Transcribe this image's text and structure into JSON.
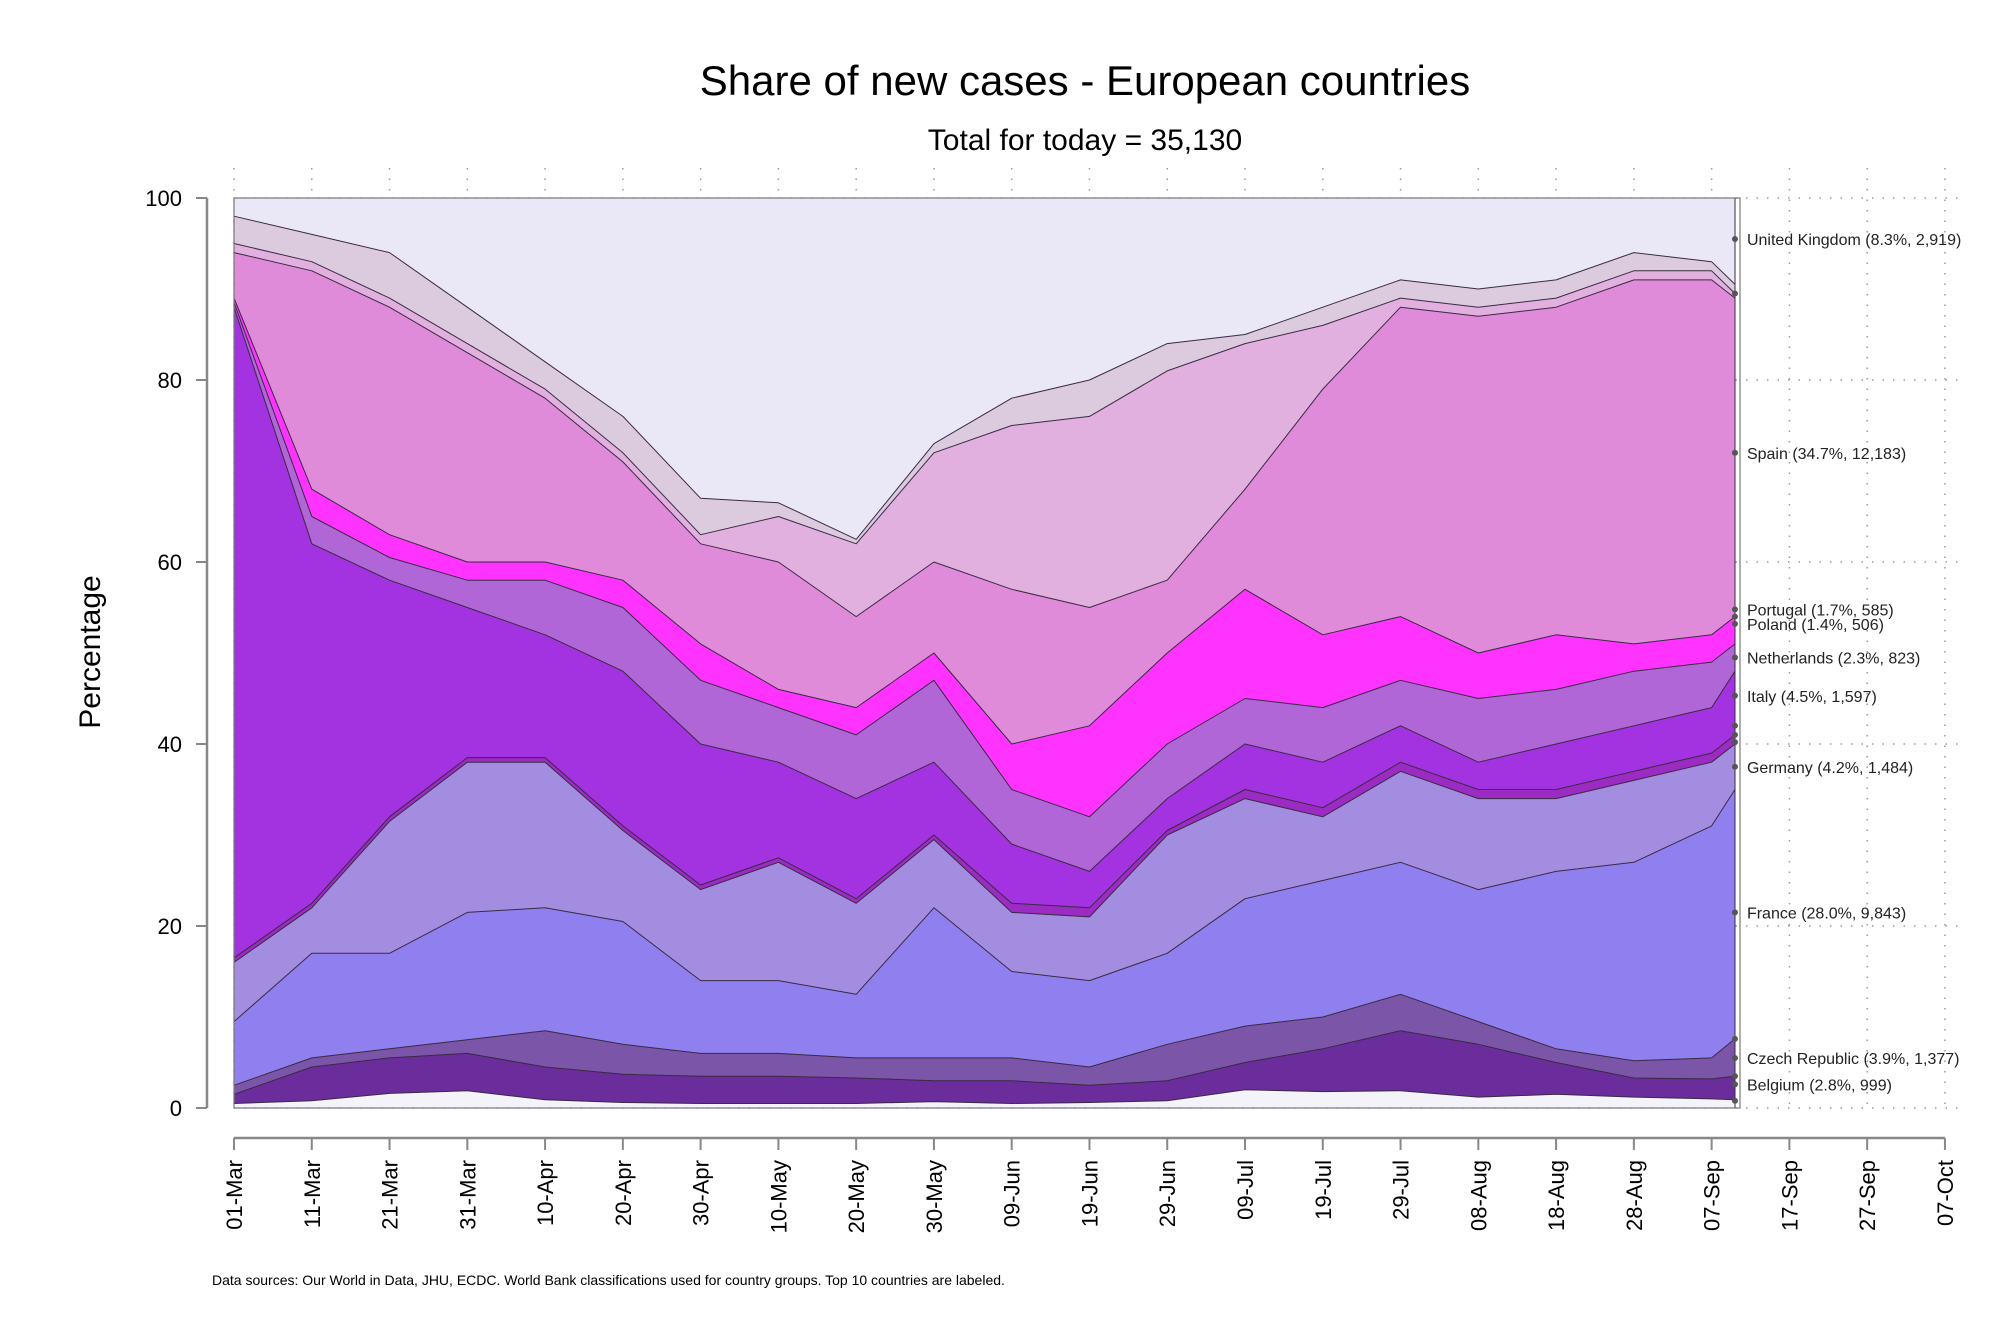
{
  "chart_data": {
    "type": "area",
    "title": "Share of new cases - European countries",
    "subtitle": "Total for today =  35,130",
    "ylabel": "Percentage",
    "xlabel": "",
    "ylim": [
      0,
      100
    ],
    "y_ticks": [
      "0",
      "20",
      "40",
      "60",
      "80",
      "100"
    ],
    "x_ticks": [
      "01-Mar",
      "11-Mar",
      "21-Mar",
      "31-Mar",
      "10-Apr",
      "20-Apr",
      "30-Apr",
      "10-May",
      "20-May",
      "30-May",
      "09-Jun",
      "19-Jun",
      "29-Jun",
      "09-Jul",
      "19-Jul",
      "29-Jul",
      "08-Aug",
      "18-Aug",
      "28-Aug",
      "07-Sep",
      "17-Sep",
      "27-Sep",
      "07-Oct"
    ],
    "x": [
      "01-Mar",
      "11-Mar",
      "21-Mar",
      "31-Mar",
      "10-Apr",
      "20-Apr",
      "30-Apr",
      "10-May",
      "20-May",
      "30-May",
      "09-Jun",
      "19-Jun",
      "29-Jun",
      "09-Jul",
      "19-Jul",
      "29-Jul",
      "08-Aug",
      "18-Aug",
      "28-Aug",
      "07-Sep",
      "10-Sep"
    ],
    "x_range": [
      "01-Mar",
      "07-Oct"
    ],
    "grid": true,
    "cumulative_boundaries": [
      {
        "values": [
          0.5,
          0.8,
          1.6,
          1.9,
          0.9,
          0.6,
          0.5,
          0.5,
          0.5,
          0.7,
          0.5,
          0.6,
          0.8,
          2.0,
          1.8,
          1.9,
          1.2,
          1.5,
          1.2,
          1.0,
          0.9
        ],
        "color": "#f3f3f9"
      },
      {
        "values": [
          1.5,
          4.5,
          5.5,
          6.0,
          4.5,
          3.7,
          3.5,
          3.5,
          3.3,
          3.0,
          3.0,
          2.5,
          3.0,
          5.0,
          6.5,
          8.5,
          7.0,
          5.0,
          3.3,
          3.2,
          3.5
        ],
        "color": "#6a2d9b"
      },
      {
        "values": [
          2.5,
          5.5,
          6.5,
          7.5,
          8.5,
          7.0,
          6.0,
          6.0,
          5.5,
          5.5,
          5.5,
          4.5,
          7.0,
          9.0,
          10.0,
          12.5,
          9.5,
          6.5,
          5.2,
          5.5,
          7.6
        ],
        "color": "#7b55a8"
      },
      {
        "values": [
          9.5,
          17.0,
          17.0,
          21.5,
          22.0,
          20.5,
          14.0,
          14.0,
          12.5,
          22.0,
          15.0,
          14.0,
          17.0,
          23.0,
          25.0,
          27.0,
          24.0,
          26.0,
          27.0,
          31.0,
          35.0
        ],
        "color": "#9080ef"
      },
      {
        "values": [
          16.0,
          22.0,
          31.5,
          38.0,
          38.0,
          30.5,
          24.0,
          27.0,
          22.5,
          29.5,
          21.5,
          21.0,
          30.0,
          34.0,
          32.0,
          37.0,
          34.0,
          34.0,
          36.0,
          38.0,
          40.0
        ],
        "color": "#a38de0"
      },
      {
        "values": [
          16.5,
          22.5,
          32.0,
          38.5,
          38.5,
          31.0,
          24.5,
          27.5,
          23.0,
          30.0,
          22.5,
          22.0,
          30.5,
          35.0,
          33.0,
          38.0,
          35.0,
          35.0,
          37.0,
          39.0,
          41.0
        ],
        "color": "#9b2bc2"
      },
      {
        "values": [
          88.0,
          62.0,
          58.0,
          55.0,
          52.0,
          48.0,
          40.0,
          38.0,
          34.0,
          38.0,
          29.0,
          26.0,
          34.0,
          40.0,
          38.0,
          42.0,
          38.0,
          40.0,
          42.0,
          44.0,
          48.0
        ],
        "color": "#a332e0"
      },
      {
        "values": [
          88.5,
          65.0,
          60.5,
          58.0,
          58.0,
          55.0,
          47.0,
          44.0,
          41.0,
          47.0,
          35.0,
          32.0,
          40.0,
          45.0,
          44.0,
          47.0,
          45.0,
          46.0,
          48.0,
          49.0,
          51.0
        ],
        "color": "#b066d6"
      },
      {
        "values": [
          89.0,
          68.0,
          63.0,
          60.0,
          60.0,
          58.0,
          51.0,
          46.0,
          44.0,
          50.0,
          40.0,
          42.0,
          50.0,
          57.0,
          52.0,
          54.0,
          50.0,
          52.0,
          51.0,
          52.0,
          54.0
        ],
        "color": "#ff33ff"
      },
      {
        "values": [
          94.0,
          92.0,
          88.0,
          83.0,
          78.0,
          71.0,
          62.0,
          60.0,
          54.0,
          60.0,
          57.0,
          55.0,
          58.0,
          68.0,
          79.0,
          88.0,
          87.0,
          88.0,
          91.0,
          91.0,
          89.0
        ],
        "color": "#e08ada"
      },
      {
        "values": [
          95.0,
          93.0,
          89.0,
          84.0,
          79.0,
          72.0,
          63.0,
          65.0,
          62.0,
          72.0,
          75.0,
          76.0,
          81.0,
          84.0,
          86.0,
          89.0,
          88.0,
          89.0,
          92.0,
          92.0,
          89.5
        ],
        "color": "#e2b0de"
      },
      {
        "values": [
          98.0,
          96.0,
          94.0,
          88.0,
          82.0,
          76.0,
          67.0,
          66.5,
          62.5,
          73.0,
          78.0,
          80.0,
          84.0,
          85.0,
          88.0,
          91.0,
          90.0,
          91.0,
          94.0,
          93.0,
          90.5
        ],
        "color": "#dccbdf"
      },
      {
        "values": [
          100,
          100,
          100,
          100,
          100,
          100,
          100,
          100,
          100,
          100,
          100,
          100,
          100,
          100,
          100,
          100,
          100,
          100,
          100,
          100,
          100
        ],
        "color": "#eae8f7"
      }
    ],
    "labels": [
      {
        "text": "United Kingdom (8.3%, 2,919)",
        "y": 95.5
      },
      {
        "text": "Spain (34.7%, 12,183)",
        "y": 72.0
      },
      {
        "text": "Portugal (1.7%, 585)",
        "y": 54.8
      },
      {
        "text": "Poland (1.4%, 506)",
        "y": 53.2
      },
      {
        "text": "Netherlands (2.3%, 823)",
        "y": 49.5
      },
      {
        "text": "Italy (4.5%, 1,597)",
        "y": 45.3
      },
      {
        "text": "Germany (4.2%, 1,484)",
        "y": 37.5
      },
      {
        "text": "France (28.0%, 9,843)",
        "y": 21.5
      },
      {
        "text": "Czech Republic (3.9%, 1,377)",
        "y": 5.5
      },
      {
        "text": "Belgium (2.8%, 999)",
        "y": 2.6
      }
    ],
    "label_point_extra": [
      89.5,
      54.0,
      42.0,
      41.0,
      40.2,
      7.6,
      3.5,
      0.8
    ]
  },
  "footer": "Data sources: Our World in Data, JHU, ECDC. World Bank classifications used for country groups. Top 10 countries are labeled."
}
